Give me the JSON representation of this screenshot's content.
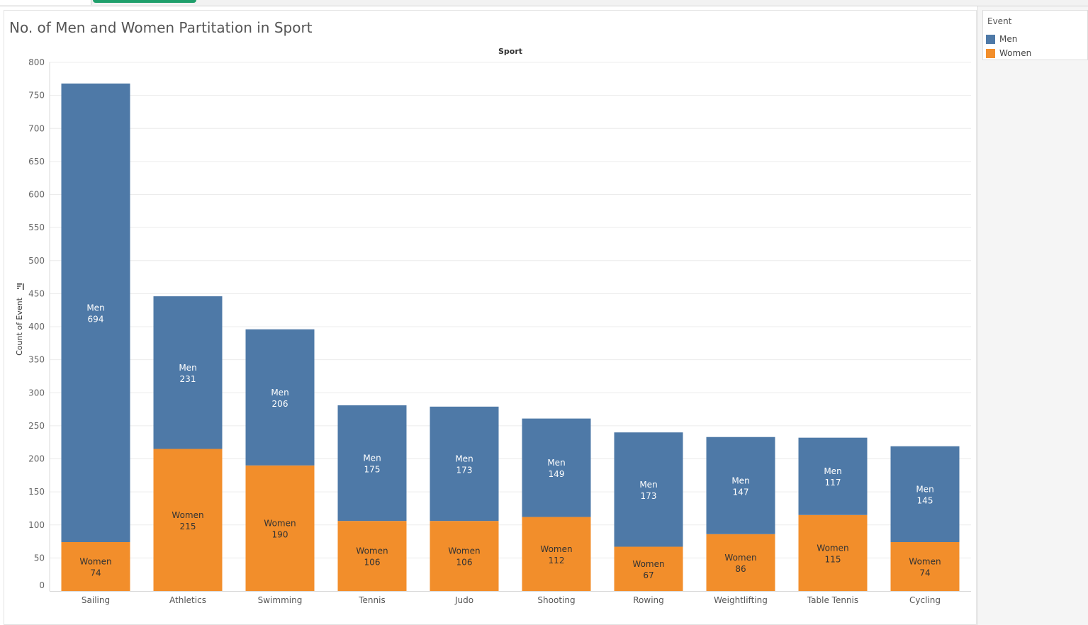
{
  "workbook": {
    "title": "No. of Men and Women Partitation in Sport"
  },
  "legend": {
    "title": "Event",
    "items": [
      {
        "label": "Men",
        "color": "#4e79a7"
      },
      {
        "label": "Women",
        "color": "#f28e2b"
      }
    ]
  },
  "chart_data": {
    "type": "bar",
    "stacked": true,
    "title": "No. of Men and Women Partitation in Sport",
    "column_header": "Sport",
    "ylabel": "Count of Event",
    "ylim": [
      0,
      800
    ],
    "yticks": [
      0,
      50,
      100,
      150,
      200,
      250,
      300,
      350,
      400,
      450,
      500,
      550,
      600,
      650,
      700,
      750,
      800
    ],
    "grid": true,
    "legend_position": "right",
    "categories": [
      "Sailing",
      "Athletics",
      "Swimming",
      "Tennis",
      "Judo",
      "Shooting",
      "Rowing",
      "Weightlifting",
      "Table Tennis",
      "Cycling"
    ],
    "series": [
      {
        "name": "Women",
        "color": "#f28e2b",
        "label_color": "#333333",
        "values": [
          74,
          215,
          190,
          106,
          106,
          112,
          67,
          86,
          115,
          74
        ]
      },
      {
        "name": "Men",
        "color": "#4e79a7",
        "label_color": "#ffffff",
        "values": [
          694,
          231,
          206,
          175,
          173,
          149,
          173,
          147,
          117,
          145
        ]
      }
    ]
  }
}
